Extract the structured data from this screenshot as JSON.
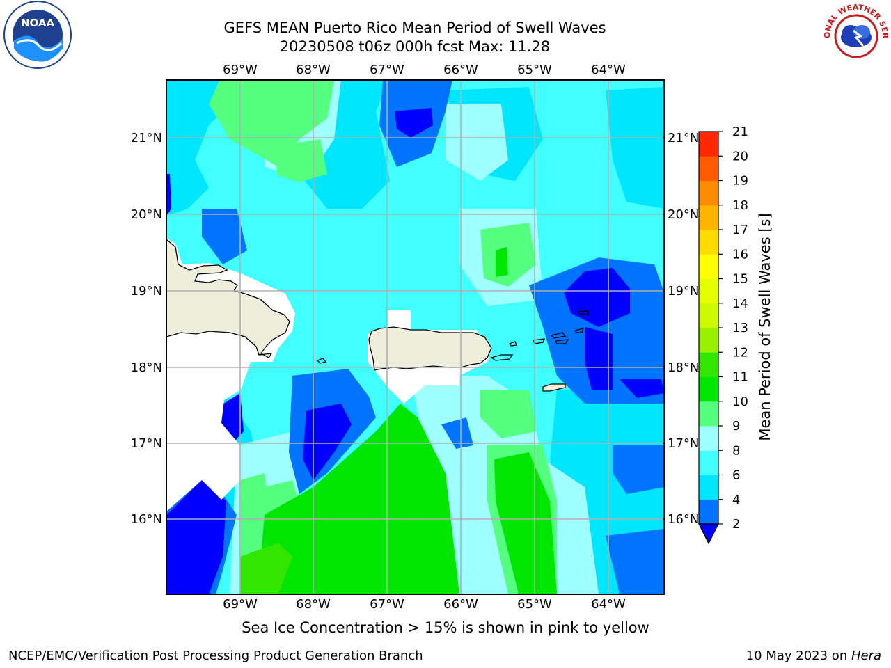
{
  "header": {
    "title_line1": "GEFS MEAN Puerto Rico Mean Period of Swell Waves",
    "title_line2": "20230508 t06z 000h fcst   Max: 11.28",
    "left_logo_text": "NOAA",
    "right_logo_text": "NATIONAL WEATHER SERVICE"
  },
  "chart_data": {
    "type": "heatmap",
    "description_variable": "Mean Period of Swell Waves",
    "colorbar_label": "Mean Period of Swell Waves [s]",
    "units": "s",
    "max_value": 11.28,
    "x_axis": {
      "ticks": [
        "69°W",
        "68°W",
        "67°W",
        "66°W",
        "65°W",
        "64°W"
      ],
      "range_deg": [
        -70.0,
        -63.25
      ]
    },
    "y_axis": {
      "ticks": [
        "21°N",
        "20°N",
        "19°N",
        "18°N",
        "17°N",
        "16°N"
      ],
      "range_deg": [
        15.0,
        21.75
      ]
    },
    "grid": true,
    "colorbar": {
      "levels": [
        2,
        4,
        6,
        8,
        9,
        10,
        11,
        12,
        13,
        14,
        15,
        16,
        17,
        18,
        19,
        20,
        21
      ],
      "tick_labels": [
        "2",
        "4",
        "6",
        "8",
        "9",
        "10",
        "11",
        "12",
        "13",
        "14",
        "15",
        "16",
        "17",
        "18",
        "19",
        "20",
        "21"
      ],
      "colors": [
        "#0073ff",
        "#00e6ff",
        "#41ffff",
        "#a0ffff",
        "#55ff80",
        "#00e600",
        "#32e600",
        "#99f000",
        "#cdfa00",
        "#e6ff00",
        "#ffff00",
        "#ffdc00",
        "#ffb400",
        "#ff8c00",
        "#ff5a00",
        "#ff2800",
        "#ff0000"
      ],
      "extend_min_color": "#0000ff"
    },
    "region_classes": [
      {
        "name": "under-2",
        "color": "#0000ff"
      },
      {
        "name": "2-4",
        "color": "#0073ff"
      },
      {
        "name": "4-6",
        "color": "#00e6ff"
      },
      {
        "name": "6-8",
        "color": "#41ffff"
      },
      {
        "name": "8-9",
        "color": "#a0ffff"
      },
      {
        "name": "9-10",
        "color": "#55ff80"
      },
      {
        "name": "10-11",
        "color": "#00e600"
      },
      {
        "name": "11-12",
        "color": "#32e600"
      },
      {
        "name": "land",
        "color": "#eeeedd"
      }
    ]
  },
  "caption": "Sea Ice Concentration > 15% is shown in pink to yellow",
  "footer": {
    "left": "NCEP/EMC/Verification Post Processing Product Generation Branch",
    "right_date": "10 May 2023 on ",
    "right_machine": "Hera"
  }
}
